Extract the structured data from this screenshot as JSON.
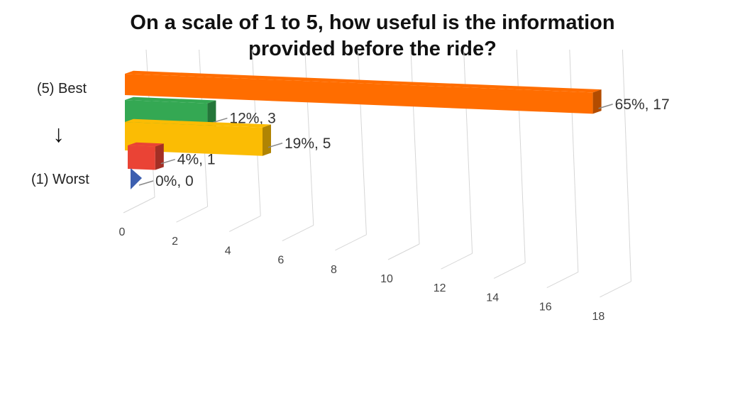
{
  "chart_data": {
    "type": "bar",
    "orientation": "horizontal",
    "style": "3d",
    "title_lines": [
      "On a scale of 1 to 5, how useful is the information",
      "provided before the ride?"
    ],
    "top_label": "(5) Best",
    "bottom_label": "(1) Worst",
    "arrow": "↓",
    "bars": [
      {
        "value": 17,
        "label": "65%, 17",
        "color": "#ff6d00"
      },
      {
        "value": 3,
        "label": "12%, 3",
        "color": "#34a853"
      },
      {
        "value": 5,
        "label": "19%, 5",
        "color": "#fbbc04"
      },
      {
        "value": 1,
        "label": "4%, 1",
        "color": "#ea4335"
      },
      {
        "value": 0,
        "label": "0%, 0",
        "color": "#3c5fb0"
      }
    ],
    "x_ticks": [
      "0",
      "2",
      "4",
      "6",
      "8",
      "10",
      "12",
      "14",
      "16",
      "18"
    ],
    "xlim": [
      0,
      18
    ],
    "grid": true
  }
}
